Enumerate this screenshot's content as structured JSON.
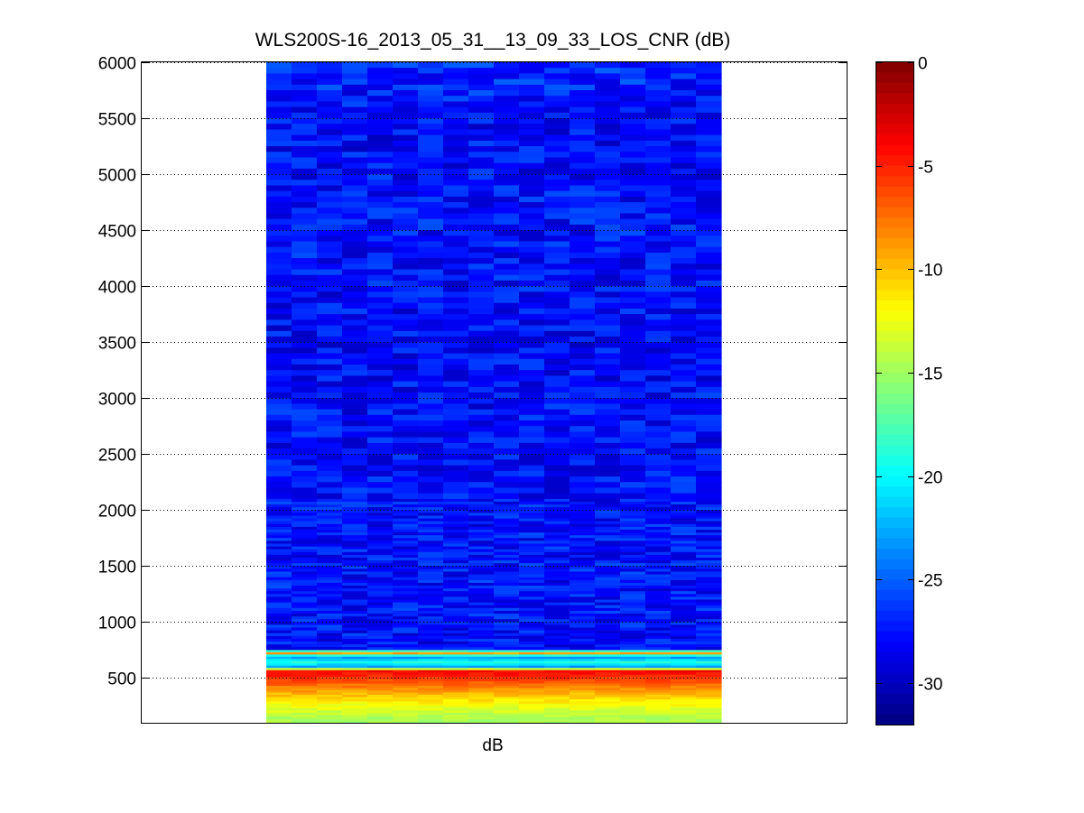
{
  "chart_data": {
    "type": "heatmap",
    "title": "WLS200S-16_2013_05_31__13_09_33_LOS_CNR (dB)",
    "xlabel": "dB",
    "ylabel": "",
    "ylim": [
      100,
      6000
    ],
    "yticks": [
      500,
      1000,
      1500,
      2000,
      2500,
      3000,
      3500,
      4000,
      4500,
      5000,
      5500,
      6000
    ],
    "grid": "horizontal dotted",
    "colormap": "jet",
    "colorbar": {
      "min": -32,
      "max": 0,
      "ticks": [
        0,
        -5,
        -10,
        -15,
        -20,
        -25,
        -30
      ]
    },
    "columns": 18,
    "profile": [
      {
        "range": 6000,
        "cnr": -26.5
      },
      {
        "range": 5500,
        "cnr": -28.0
      },
      {
        "range": 5000,
        "cnr": -27.8
      },
      {
        "range": 4500,
        "cnr": -27.5
      },
      {
        "range": 4000,
        "cnr": -27.8
      },
      {
        "range": 3500,
        "cnr": -28.0
      },
      {
        "range": 3000,
        "cnr": -27.8
      },
      {
        "range": 2500,
        "cnr": -27.7
      },
      {
        "range": 2000,
        "cnr": -27.6
      },
      {
        "range": 1500,
        "cnr": -27.5
      },
      {
        "range": 1000,
        "cnr": -27.6
      },
      {
        "range": 760,
        "cnr": -27.8
      },
      {
        "range": 720,
        "cnr": -9.0
      },
      {
        "range": 690,
        "cnr": -24.0
      },
      {
        "range": 640,
        "cnr": -19.0
      },
      {
        "range": 600,
        "cnr": -23.0
      },
      {
        "range": 560,
        "cnr": -4.0
      },
      {
        "range": 450,
        "cnr": -7.0
      },
      {
        "range": 350,
        "cnr": -10.0
      },
      {
        "range": 250,
        "cnr": -12.5
      },
      {
        "range": 150,
        "cnr": -14.5
      },
      {
        "range": 100,
        "cnr": -15.0
      }
    ]
  }
}
